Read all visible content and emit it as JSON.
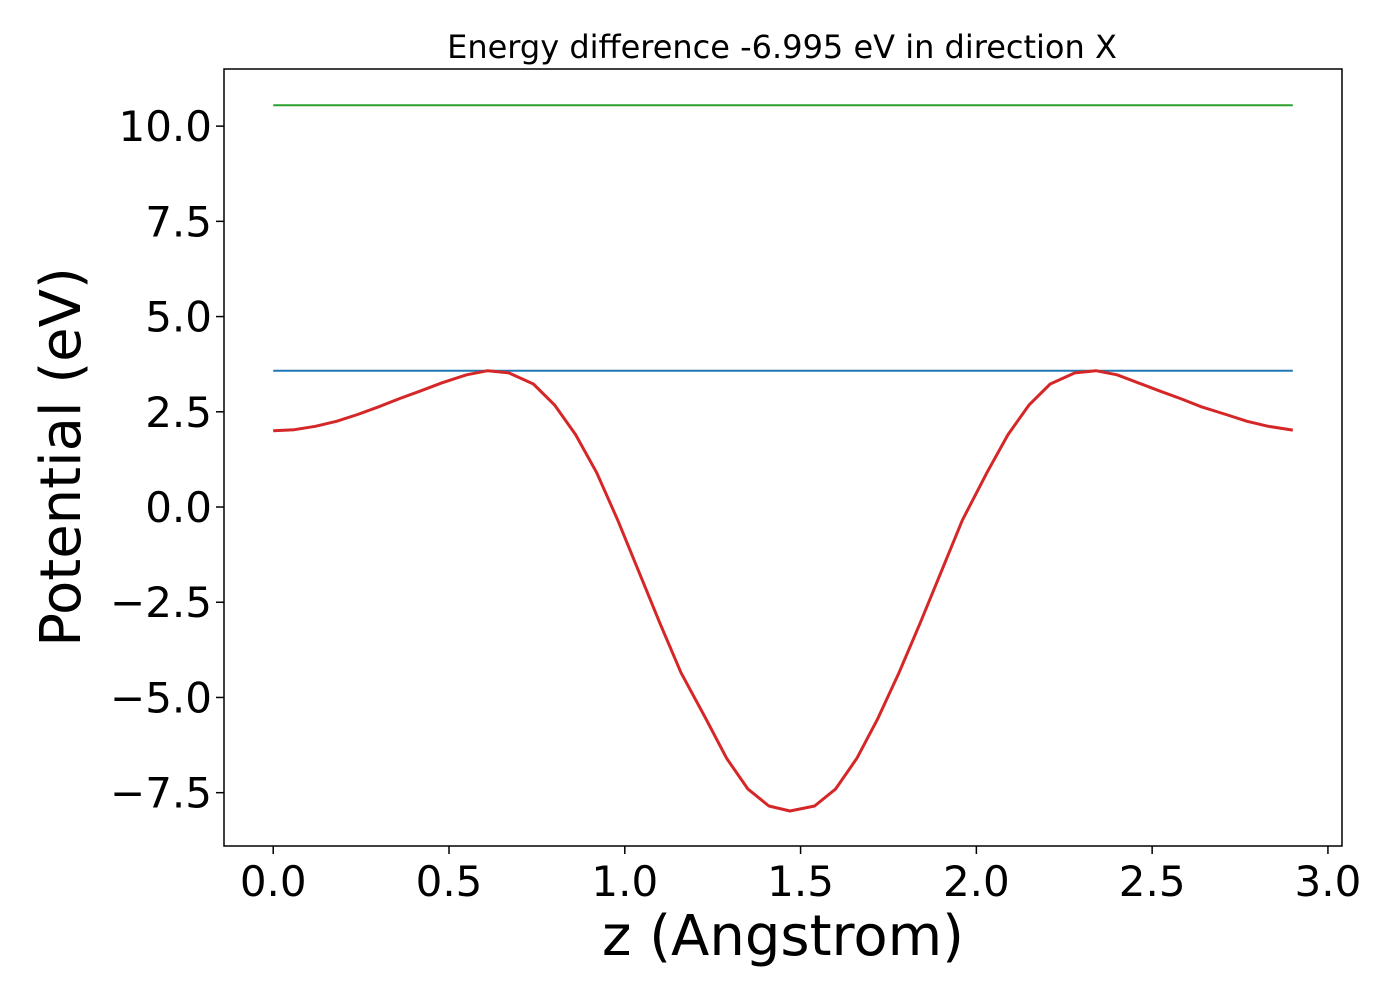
{
  "chart_data": {
    "type": "line",
    "title": "Energy difference -6.995 eV in direction X",
    "xlabel": "z (Angstrom)",
    "ylabel": "Potential (eV)",
    "xlim": [
      -0.14,
      3.04
    ],
    "ylim": [
      -8.9,
      11.5
    ],
    "xticks": [
      0.0,
      0.5,
      1.0,
      1.5,
      2.0,
      2.5,
      3.0
    ],
    "xtick_labels": [
      "0.0",
      "0.5",
      "1.0",
      "1.5",
      "2.0",
      "2.5",
      "3.0"
    ],
    "yticks": [
      -7.5,
      -5.0,
      -2.5,
      0.0,
      2.5,
      5.0,
      7.5,
      10.0
    ],
    "ytick_labels": [
      "−7.5",
      "−5.0",
      "−2.5",
      "0.0",
      "2.5",
      "5.0",
      "7.5",
      "10.0"
    ],
    "grid": false,
    "series": [
      {
        "color": "#2ca02c",
        "x": [
          0.0,
          2.9
        ],
        "y": [
          10.55,
          10.55
        ]
      },
      {
        "color": "#1f77b4",
        "x": [
          0.0,
          2.9
        ],
        "y": [
          3.58,
          3.58
        ]
      },
      {
        "color": "#d62728",
        "x": [
          0.0,
          0.06,
          0.12,
          0.18,
          0.24,
          0.3,
          0.36,
          0.42,
          0.48,
          0.55,
          0.61,
          0.67,
          0.74,
          0.8,
          0.86,
          0.92,
          0.98,
          1.04,
          1.1,
          1.16,
          1.23,
          1.29,
          1.35,
          1.41,
          1.47,
          1.54,
          1.6,
          1.66,
          1.72,
          1.78,
          1.84,
          1.9,
          1.96,
          2.03,
          2.09,
          2.15,
          2.21,
          2.28,
          2.34,
          2.4,
          2.46,
          2.52,
          2.58,
          2.64,
          2.71,
          2.77,
          2.83,
          2.9
        ],
        "y": [
          2.0,
          2.03,
          2.12,
          2.25,
          2.43,
          2.63,
          2.85,
          3.05,
          3.26,
          3.47,
          3.58,
          3.52,
          3.23,
          2.68,
          1.9,
          0.9,
          -0.35,
          -1.7,
          -3.05,
          -4.35,
          -5.55,
          -6.6,
          -7.4,
          -7.85,
          -7.98,
          -7.85,
          -7.4,
          -6.6,
          -5.55,
          -4.35,
          -3.05,
          -1.7,
          -0.35,
          0.9,
          1.9,
          2.68,
          3.23,
          3.52,
          3.58,
          3.47,
          3.26,
          3.05,
          2.85,
          2.63,
          2.43,
          2.25,
          2.12,
          2.02
        ]
      }
    ]
  }
}
